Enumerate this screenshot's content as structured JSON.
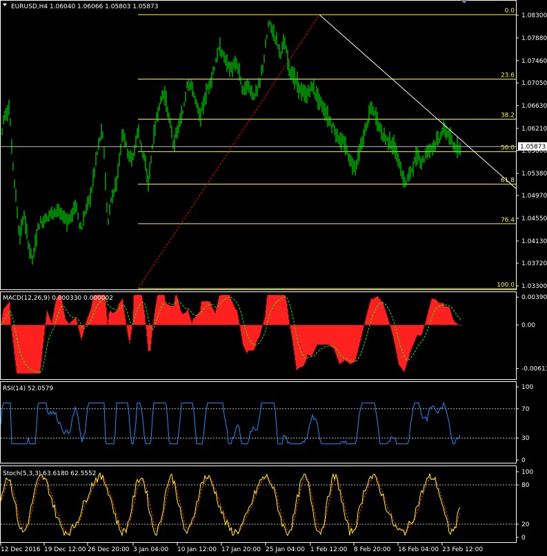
{
  "colors": {
    "background": "#000000",
    "frame": "#ffffff",
    "candles": "#00ff00",
    "fib": "#ffff00",
    "macd_hist": "#ff2020",
    "macd_signal": "#00ff00",
    "rsi": "#1e90ff",
    "stoch_main": "#ffff00",
    "stoch_signal": "#ff3030",
    "trendline": "#ffffff",
    "swing_line": "#ff0000"
  },
  "price_panel": {
    "title": "EURUSD,H4  1.06040 1.06066 1.05803 1.05873",
    "current_price": "1.05873",
    "price_ticks": [
      "1.08300",
      "1.07880",
      "1.07460",
      "1.07050",
      "1.06630",
      "1.06210",
      "1.05800",
      "1.05380",
      "1.04970",
      "1.04550",
      "1.04130",
      "1.03720",
      "1.03300"
    ]
  },
  "fibonacci": {
    "levels": [
      {
        "label": "0.0",
        "price": 1.0831
      },
      {
        "label": "23.6",
        "price": 1.0712
      },
      {
        "label": "38.2",
        "price": 1.0638
      },
      {
        "label": "50.0",
        "price": 1.0578
      },
      {
        "label": "61.8",
        "price": 1.0518
      },
      {
        "label": "76.4",
        "price": 1.0445
      },
      {
        "label": "100.0",
        "price": 1.0325
      }
    ]
  },
  "macd_panel": {
    "title": "MACD(12,26,9) 0.000330 0.000002",
    "ticks": [
      "0.003906",
      "0.00",
      "-0.006136"
    ]
  },
  "rsi_panel": {
    "title": "RSI(14) 52.0579",
    "ticks": [
      "100",
      "70",
      "30",
      "0"
    ]
  },
  "stoch_panel": {
    "title": "Stoch(5,3,3) 63.6180 62.5552",
    "ticks": [
      "100",
      "80",
      "20",
      "0"
    ]
  },
  "time_axis": [
    "12 Dec 2016",
    "19 Dec 12:00",
    "26 Dec 20:00",
    "3 Jan 04:00",
    "10 Jan 12:00",
    "17 Jan 20:00",
    "25 Jan 04:00",
    "1 Feb 12:00",
    "8 Feb 20:00",
    "16 Feb 04:00",
    "23 Feb 12:00"
  ],
  "chart_data": {
    "type": "candlestick",
    "symbol": "EURUSD",
    "timeframe": "H4",
    "ylim": [
      1.033,
      1.0845
    ],
    "anchors": [
      [
        0,
        1.059
      ],
      [
        5,
        1.064
      ],
      [
        14,
        1.066
      ],
      [
        16,
        1.06
      ],
      [
        22,
        1.051
      ],
      [
        28,
        1.042
      ],
      [
        35,
        1.046
      ],
      [
        42,
        1.04
      ],
      [
        48,
        1.038
      ],
      [
        55,
        1.044
      ],
      [
        62,
        1.045
      ],
      [
        70,
        1.046
      ],
      [
        80,
        1.047
      ],
      [
        90,
        1.046
      ],
      [
        100,
        1.045
      ],
      [
        110,
        1.048
      ],
      [
        118,
        1.043
      ],
      [
        124,
        1.047
      ],
      [
        132,
        1.05
      ],
      [
        140,
        1.057
      ],
      [
        148,
        1.062
      ],
      [
        152,
        1.056
      ],
      [
        156,
        1.044
      ],
      [
        160,
        1.048
      ],
      [
        170,
        1.053
      ],
      [
        178,
        1.062
      ],
      [
        185,
        1.058
      ],
      [
        192,
        1.056
      ],
      [
        200,
        1.062
      ],
      [
        208,
        1.057
      ],
      [
        215,
        1.052
      ],
      [
        222,
        1.06
      ],
      [
        230,
        1.066
      ],
      [
        238,
        1.069
      ],
      [
        245,
        1.064
      ],
      [
        252,
        1.059
      ],
      [
        258,
        1.062
      ],
      [
        265,
        1.065
      ],
      [
        272,
        1.071
      ],
      [
        280,
        1.069
      ],
      [
        290,
        1.064
      ],
      [
        300,
        1.069
      ],
      [
        308,
        1.072
      ],
      [
        318,
        1.077
      ],
      [
        326,
        1.075
      ],
      [
        334,
        1.073
      ],
      [
        344,
        1.074
      ],
      [
        352,
        1.069
      ],
      [
        360,
        1.07
      ],
      [
        368,
        1.068
      ],
      [
        376,
        1.07
      ],
      [
        384,
        1.076
      ],
      [
        390,
        1.082
      ],
      [
        395,
        1.08
      ],
      [
        400,
        1.079
      ],
      [
        406,
        1.076
      ],
      [
        412,
        1.078
      ],
      [
        420,
        1.073
      ],
      [
        428,
        1.071
      ],
      [
        436,
        1.069
      ],
      [
        444,
        1.068
      ],
      [
        452,
        1.07
      ],
      [
        460,
        1.068
      ],
      [
        468,
        1.066
      ],
      [
        476,
        1.064
      ],
      [
        484,
        1.062
      ],
      [
        492,
        1.06
      ],
      [
        500,
        1.059
      ],
      [
        508,
        1.056
      ],
      [
        515,
        1.055
      ],
      [
        522,
        1.058
      ],
      [
        530,
        1.062
      ],
      [
        538,
        1.066
      ],
      [
        546,
        1.064
      ],
      [
        554,
        1.061
      ],
      [
        562,
        1.06
      ],
      [
        570,
        1.059
      ],
      [
        578,
        1.056
      ],
      [
        586,
        1.052
      ],
      [
        592,
        1.053
      ],
      [
        598,
        1.055
      ],
      [
        605,
        1.057
      ],
      [
        612,
        1.056
      ],
      [
        620,
        1.058
      ],
      [
        628,
        1.059
      ],
      [
        636,
        1.06
      ],
      [
        643,
        1.062
      ],
      [
        650,
        1.061
      ],
      [
        657,
        1.0587
      ]
    ],
    "fib_high": {
      "x": 463,
      "price": 1.0831
    },
    "fib_low": {
      "x": 200,
      "price": 1.0325
    },
    "trendline": {
      "x1": 463,
      "p1": 1.0831,
      "x2": 748,
      "p2": 1.051
    },
    "macd": {
      "ylim": [
        -0.0075,
        0.0045
      ]
    },
    "rsi": {
      "ylim": [
        0,
        100
      ],
      "levels": [
        70,
        30
      ]
    },
    "stoch": {
      "ylim": [
        0,
        100
      ],
      "levels": [
        80,
        20
      ]
    }
  }
}
